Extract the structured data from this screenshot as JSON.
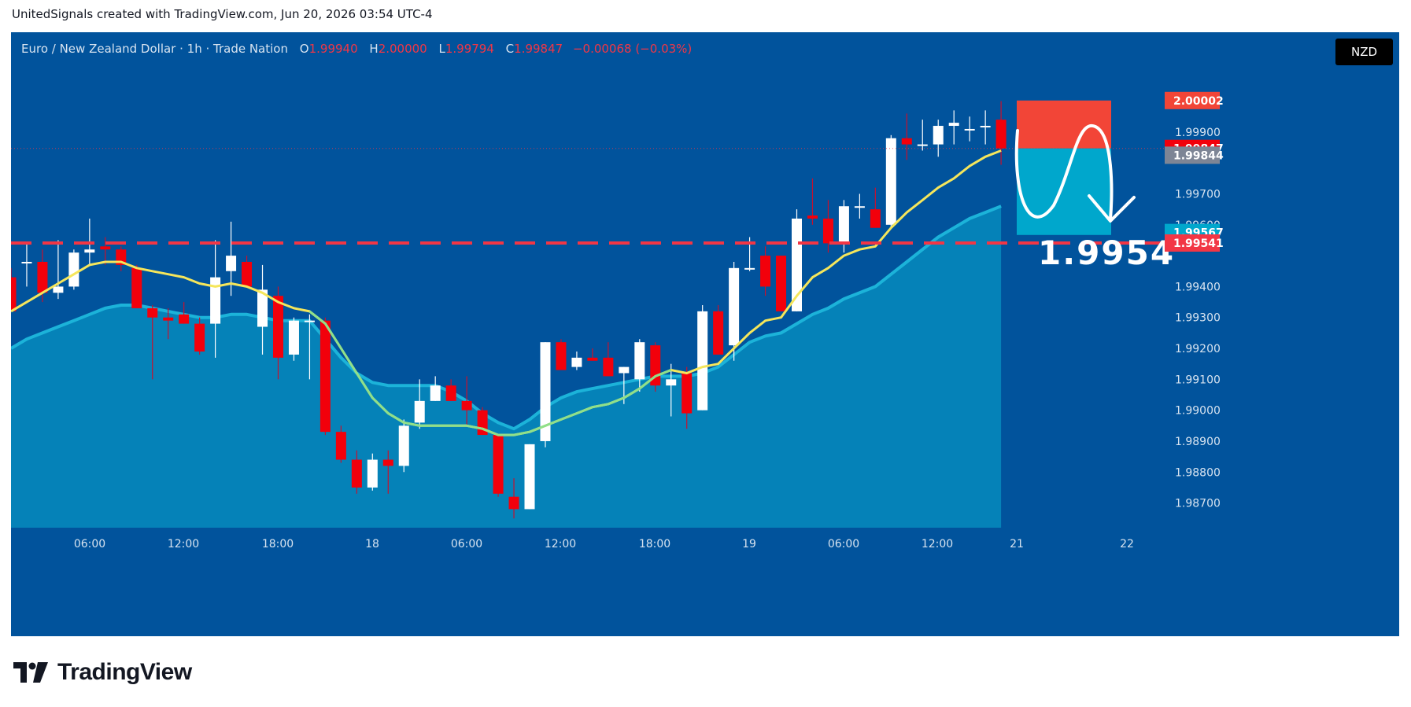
{
  "header": {
    "credit": "UnitedSignals created with TradingView.com, Jun 20, 2026 03:54 UTC-4"
  },
  "legend": {
    "symbol": "Euro / New Zealand Dollar · 1h · Trade Nation",
    "open_label": "O",
    "open": "1.99940",
    "high_label": "H",
    "high": "2.00000",
    "low_label": "L",
    "low": "1.99794",
    "close_label": "C",
    "close": "1.99847",
    "change": "−0.00068 (−0.03%)"
  },
  "currency_button": "NZD",
  "brand": {
    "name": "TradingView"
  },
  "colors": {
    "background": "#01539c",
    "area_fill": "#0582b8",
    "up_candle": "#ffffff",
    "down_candle": "#f2000b",
    "ema_fast": "#f5e65b",
    "ema_slow": "#8fe08a",
    "target_line": "#f23645",
    "stop_box": "#f24537",
    "target_box": "#00a7cc"
  },
  "chart_data": {
    "type": "candlestick",
    "ylim": [
      1.9862,
      2.0006
    ],
    "x_ticks": [
      "06:00",
      "12:00",
      "18:00",
      "18",
      "06:00",
      "12:00",
      "18:00",
      "19",
      "06:00",
      "12:00",
      "21",
      "22"
    ],
    "y_ticks": [
      "1.99900",
      "1.99700",
      "1.99600",
      "1.99400",
      "1.99300",
      "1.99200",
      "1.99100",
      "1.99000",
      "1.98900",
      "1.98800",
      "1.98700"
    ],
    "candles": [
      {
        "o": 1.9943,
        "h": 1.9946,
        "l": 1.9932,
        "c": 1.9932
      },
      {
        "o": 1.9948,
        "h": 1.9954,
        "l": 1.994,
        "c": 1.9948
      },
      {
        "o": 1.9948,
        "h": 1.9952,
        "l": 1.9935,
        "c": 1.9938
      },
      {
        "o": 1.9938,
        "h": 1.9955,
        "l": 1.9936,
        "c": 1.994
      },
      {
        "o": 1.994,
        "h": 1.9952,
        "l": 1.9939,
        "c": 1.9951
      },
      {
        "o": 1.9951,
        "h": 1.9962,
        "l": 1.9947,
        "c": 1.9952
      },
      {
        "o": 1.9953,
        "h": 1.9956,
        "l": 1.9947,
        "c": 1.9952
      },
      {
        "o": 1.9952,
        "h": 1.9953,
        "l": 1.9945,
        "c": 1.9947
      },
      {
        "o": 1.9946,
        "h": 1.9947,
        "l": 1.9933,
        "c": 1.9933
      },
      {
        "o": 1.9933,
        "h": 1.9934,
        "l": 1.991,
        "c": 1.993
      },
      {
        "o": 1.993,
        "h": 1.9933,
        "l": 1.9923,
        "c": 1.9929
      },
      {
        "o": 1.9931,
        "h": 1.9935,
        "l": 1.9928,
        "c": 1.9928
      },
      {
        "o": 1.9928,
        "h": 1.993,
        "l": 1.9918,
        "c": 1.9919
      },
      {
        "o": 1.9928,
        "h": 1.9955,
        "l": 1.9917,
        "c": 1.9943
      },
      {
        "o": 1.9945,
        "h": 1.9961,
        "l": 1.9937,
        "c": 1.995
      },
      {
        "o": 1.9948,
        "h": 1.995,
        "l": 1.994,
        "c": 1.994
      },
      {
        "o": 1.9927,
        "h": 1.9947,
        "l": 1.9918,
        "c": 1.9939
      },
      {
        "o": 1.9937,
        "h": 1.994,
        "l": 1.991,
        "c": 1.9917
      },
      {
        "o": 1.9918,
        "h": 1.993,
        "l": 1.9916,
        "c": 1.9929
      },
      {
        "o": 1.9929,
        "h": 1.9931,
        "l": 1.991,
        "c": 1.9929
      },
      {
        "o": 1.9929,
        "h": 1.993,
        "l": 1.9892,
        "c": 1.9893
      },
      {
        "o": 1.9893,
        "h": 1.9895,
        "l": 1.9883,
        "c": 1.9884
      },
      {
        "o": 1.9884,
        "h": 1.9887,
        "l": 1.9873,
        "c": 1.9875
      },
      {
        "o": 1.9875,
        "h": 1.9886,
        "l": 1.9874,
        "c": 1.9884
      },
      {
        "o": 1.9884,
        "h": 1.9887,
        "l": 1.9873,
        "c": 1.9882
      },
      {
        "o": 1.9882,
        "h": 1.9897,
        "l": 1.988,
        "c": 1.9895
      },
      {
        "o": 1.9896,
        "h": 1.991,
        "l": 1.9894,
        "c": 1.9903
      },
      {
        "o": 1.9903,
        "h": 1.9911,
        "l": 1.9903,
        "c": 1.9908
      },
      {
        "o": 1.9908,
        "h": 1.991,
        "l": 1.9903,
        "c": 1.9903
      },
      {
        "o": 1.9903,
        "h": 1.9911,
        "l": 1.9895,
        "c": 1.99
      },
      {
        "o": 1.99,
        "h": 1.9901,
        "l": 1.9892,
        "c": 1.9892
      },
      {
        "o": 1.9892,
        "h": 1.9892,
        "l": 1.9872,
        "c": 1.9873
      },
      {
        "o": 1.9872,
        "h": 1.9878,
        "l": 1.9865,
        "c": 1.9868
      },
      {
        "o": 1.9868,
        "h": 1.9889,
        "l": 1.9868,
        "c": 1.9889
      },
      {
        "o": 1.989,
        "h": 1.9922,
        "l": 1.9888,
        "c": 1.9922
      },
      {
        "o": 1.9922,
        "h": 1.9923,
        "l": 1.9913,
        "c": 1.9913
      },
      {
        "o": 1.9914,
        "h": 1.9919,
        "l": 1.9913,
        "c": 1.9917
      },
      {
        "o": 1.9917,
        "h": 1.992,
        "l": 1.9916,
        "c": 1.9916
      },
      {
        "o": 1.9917,
        "h": 1.9922,
        "l": 1.9911,
        "c": 1.9911
      },
      {
        "o": 1.9912,
        "h": 1.9914,
        "l": 1.9902,
        "c": 1.9914
      },
      {
        "o": 1.991,
        "h": 1.9923,
        "l": 1.9906,
        "c": 1.9922
      },
      {
        "o": 1.9921,
        "h": 1.9922,
        "l": 1.9906,
        "c": 1.9908
      },
      {
        "o": 1.9908,
        "h": 1.9915,
        "l": 1.9898,
        "c": 1.991
      },
      {
        "o": 1.9912,
        "h": 1.9914,
        "l": 1.9894,
        "c": 1.9899
      },
      {
        "o": 1.99,
        "h": 1.9934,
        "l": 1.99,
        "c": 1.9932
      },
      {
        "o": 1.9932,
        "h": 1.9934,
        "l": 1.9918,
        "c": 1.9918
      },
      {
        "o": 1.9921,
        "h": 1.9948,
        "l": 1.9916,
        "c": 1.9946
      },
      {
        "o": 1.9946,
        "h": 1.9956,
        "l": 1.9945,
        "c": 1.9946
      },
      {
        "o": 1.995,
        "h": 1.9953,
        "l": 1.9937,
        "c": 1.994
      },
      {
        "o": 1.995,
        "h": 1.995,
        "l": 1.9932,
        "c": 1.9932
      },
      {
        "o": 1.9932,
        "h": 1.9965,
        "l": 1.9932,
        "c": 1.9962
      },
      {
        "o": 1.9963,
        "h": 1.9975,
        "l": 1.996,
        "c": 1.9962
      },
      {
        "o": 1.9962,
        "h": 1.9968,
        "l": 1.9951,
        "c": 1.9954
      },
      {
        "o": 1.9954,
        "h": 1.9968,
        "l": 1.9951,
        "c": 1.9966
      },
      {
        "o": 1.9966,
        "h": 1.997,
        "l": 1.9962,
        "c": 1.9966
      },
      {
        "o": 1.9965,
        "h": 1.9972,
        "l": 1.9959,
        "c": 1.9959
      },
      {
        "o": 1.996,
        "h": 1.9989,
        "l": 1.9959,
        "c": 1.9988
      },
      {
        "o": 1.9988,
        "h": 1.9996,
        "l": 1.9981,
        "c": 1.9986
      },
      {
        "o": 1.9986,
        "h": 1.9994,
        "l": 1.9984,
        "c": 1.9986
      },
      {
        "o": 1.9986,
        "h": 1.9994,
        "l": 1.9982,
        "c": 1.9992
      },
      {
        "o": 1.9992,
        "h": 1.9997,
        "l": 1.9986,
        "c": 1.9993
      },
      {
        "o": 1.9991,
        "h": 1.9995,
        "l": 1.9987,
        "c": 1.9991
      },
      {
        "o": 1.9992,
        "h": 1.9997,
        "l": 1.9986,
        "c": 1.9992
      },
      {
        "o": 1.9994,
        "h": 2.0,
        "l": 1.99794,
        "c": 1.99847
      }
    ],
    "ema_fast": [
      1.9932,
      1.9935,
      1.9938,
      1.9941,
      1.9944,
      1.9947,
      1.9948,
      1.9948,
      1.9946,
      1.9945,
      1.9944,
      1.9943,
      1.9941,
      1.994,
      1.9941,
      1.994,
      1.9938,
      1.9935,
      1.9933,
      1.9932,
      1.9928,
      1.992,
      1.9912,
      1.9904,
      1.9899,
      1.9896,
      1.9895,
      1.9895,
      1.9895,
      1.9895,
      1.9894,
      1.9892,
      1.9892,
      1.9893,
      1.9895,
      1.9897,
      1.9899,
      1.9901,
      1.9902,
      1.9904,
      1.9907,
      1.9911,
      1.9913,
      1.9912,
      1.9914,
      1.9915,
      1.992,
      1.9925,
      1.9929,
      1.993,
      1.9937,
      1.9943,
      1.9946,
      1.995,
      1.9952,
      1.9953,
      1.9959,
      1.9964,
      1.9968,
      1.9972,
      1.9975,
      1.9979,
      1.9982,
      1.9984
    ],
    "ema_slow": [
      1.992,
      1.9923,
      1.9925,
      1.9927,
      1.9929,
      1.9931,
      1.9933,
      1.9934,
      1.9934,
      1.9933,
      1.9932,
      1.9931,
      1.993,
      1.993,
      1.9931,
      1.9931,
      1.993,
      1.9929,
      1.9929,
      1.9929,
      1.9923,
      1.9917,
      1.9912,
      1.9909,
      1.9908,
      1.9908,
      1.9908,
      1.9908,
      1.9906,
      1.9903,
      1.9899,
      1.9896,
      1.9894,
      1.9897,
      1.9901,
      1.9904,
      1.9906,
      1.9907,
      1.9908,
      1.9909,
      1.991,
      1.9911,
      1.9911,
      1.9911,
      1.9912,
      1.9914,
      1.9918,
      1.9922,
      1.9924,
      1.9925,
      1.9928,
      1.9931,
      1.9933,
      1.9936,
      1.9938,
      1.994,
      1.9944,
      1.9948,
      1.9952,
      1.9956,
      1.9959,
      1.9962,
      1.9964,
      1.9966
    ],
    "target_price": 1.99541,
    "stop_price": 2.00002,
    "entry_price": 1.99847,
    "target_zone_low": 1.99567,
    "price_labels": [
      {
        "text": "2.00002",
        "price": 2.00002,
        "color": "#f24537"
      },
      {
        "text": "1.99847",
        "price": 1.99847,
        "color": "#f2000b"
      },
      {
        "text": "1.99844",
        "price": 1.99825,
        "color": "#7d8595"
      },
      {
        "text": "1.99567",
        "price": 1.99575,
        "color": "#00a7cc"
      },
      {
        "text": "1.99541",
        "price": 1.99541,
        "color": "#f23645"
      }
    ],
    "annotation": "1.9954"
  }
}
